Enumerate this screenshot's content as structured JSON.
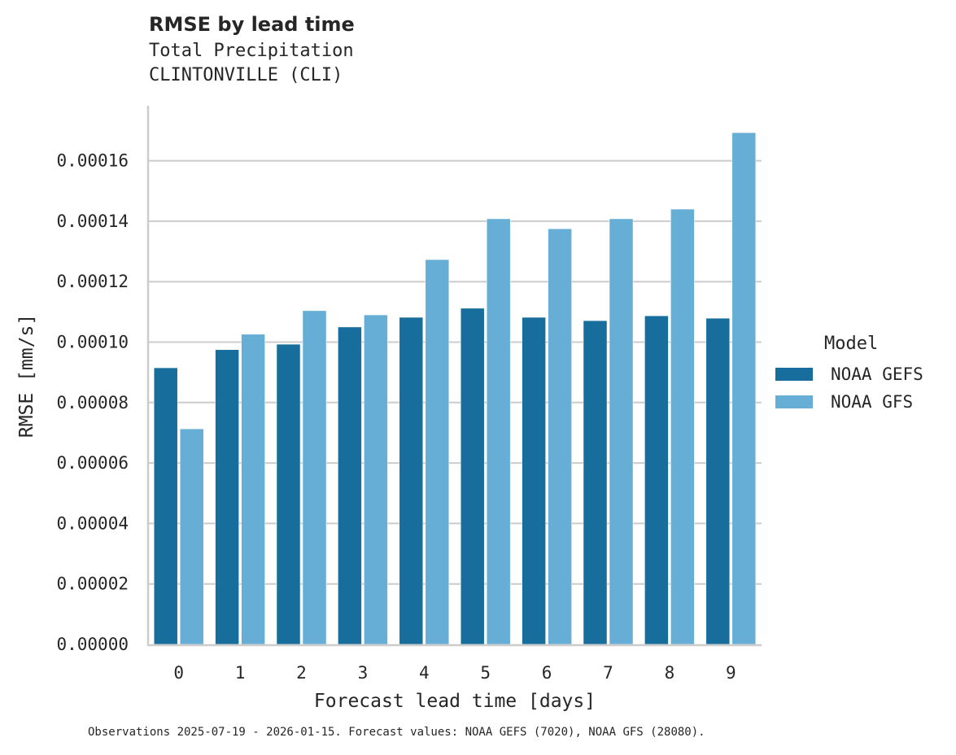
{
  "header": {
    "title": "RMSE by lead time",
    "subtitle_1": "Total Precipitation",
    "subtitle_2": "CLINTONVILLE (CLI)"
  },
  "legend": {
    "title": "Model",
    "items": [
      {
        "label": "NOAA GEFS",
        "color": "#176e9c"
      },
      {
        "label": "NOAA GFS",
        "color": "#67aed6"
      }
    ]
  },
  "footnote": "Observations 2025-07-19 - 2026-01-15. Forecast values: NOAA GEFS (7020), NOAA GFS (28080).",
  "chart_data": {
    "type": "bar",
    "title": "RMSE by lead time",
    "subtitle": "Total Precipitation / CLINTONVILLE (CLI)",
    "xlabel": "Forecast lead time [days]",
    "ylabel": "RMSE [mm/s]",
    "categories": [
      "0",
      "1",
      "2",
      "3",
      "4",
      "5",
      "6",
      "7",
      "8",
      "9"
    ],
    "series": [
      {
        "name": "NOAA GEFS",
        "color": "#176e9c",
        "values": [
          9.15e-05,
          9.75e-05,
          9.93e-05,
          0.000105,
          0.0001082,
          0.0001112,
          0.0001082,
          0.0001071,
          0.0001087,
          0.0001079
        ]
      },
      {
        "name": "NOAA GFS",
        "color": "#67aed6",
        "values": [
          7.13e-05,
          0.0001026,
          0.0001104,
          0.000109,
          0.0001273,
          0.0001408,
          0.0001375,
          0.0001408,
          0.000144,
          0.0001693
        ]
      }
    ],
    "ylim": [
      0,
      0.000178
    ],
    "yticks": [
      "0.00000",
      "0.00002",
      "0.00004",
      "0.00006",
      "0.00008",
      "0.00010",
      "0.00012",
      "0.00014",
      "0.00016"
    ],
    "grid": "horizontal",
    "legend_position": "right"
  }
}
